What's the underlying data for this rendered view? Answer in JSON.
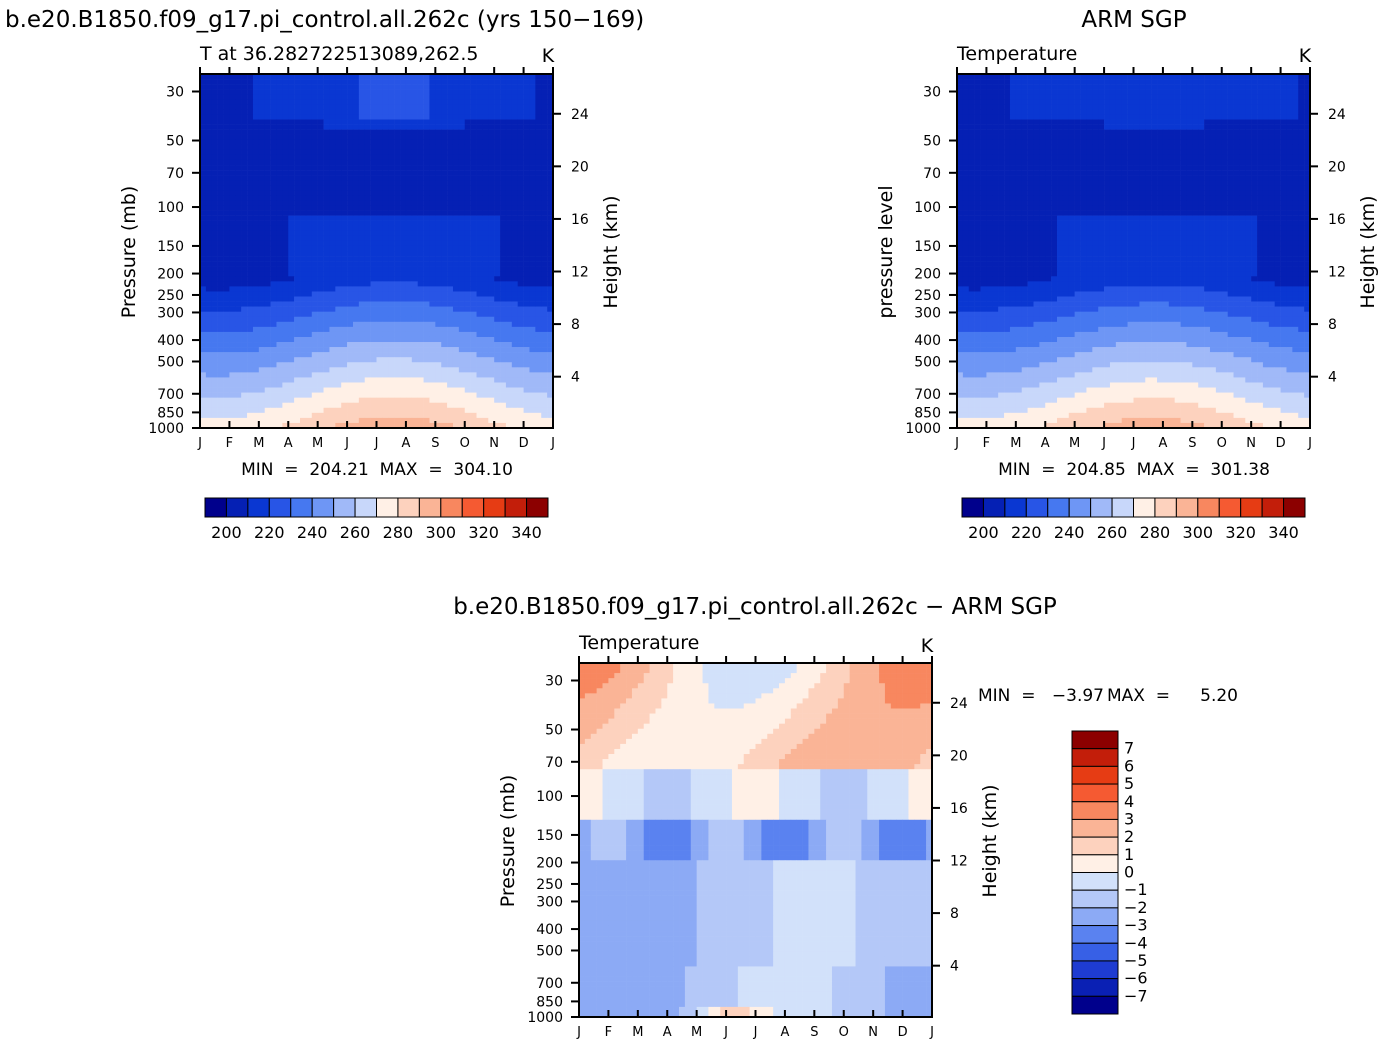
{
  "page": {
    "left_title": "b.e20.B1850.f09_g17.pi_control.all.262c (yrs 150−169)",
    "right_title": "ARM SGP",
    "diff_title": "b.e20.B1850.f09_g17.pi_control.all.262c − ARM SGP"
  },
  "chart_data": [
    {
      "type": "heatmap",
      "title": "b.e20.B1850.f09_g17.pi_control.all.262c (yrs 150−169)",
      "subtitle_left": "T at 36.282722513089,262.5",
      "subtitle_right": "K",
      "ylabel": "Pressure (mb)",
      "ylabel_right": "Height (km)",
      "months": [
        "J",
        "F",
        "M",
        "A",
        "M",
        "J",
        "J",
        "A",
        "S",
        "O",
        "N",
        "D",
        "J"
      ],
      "pressure_ticks": [
        "30",
        "50",
        "70",
        "100",
        "150",
        "200",
        "250",
        "300",
        "400",
        "500",
        "700",
        "850",
        "1000"
      ],
      "height_ticks": [
        "24",
        "20",
        "16",
        "12",
        "8",
        "4"
      ],
      "min_text": "MIN  =  204.21  MAX  =  304.10",
      "min": 204.21,
      "max": 304.1,
      "colorbar_labels": [
        "200",
        "220",
        "240",
        "260",
        "280",
        "300",
        "320",
        "340"
      ],
      "colorbar_levels": [
        190,
        200,
        210,
        220,
        230,
        240,
        250,
        260,
        270,
        280,
        290,
        300,
        310,
        320,
        330,
        340,
        350
      ],
      "colorbar_colors": [
        "#00008c",
        "#0520b4",
        "#0a37d2",
        "#2855e6",
        "#4678f0",
        "#6e96f5",
        "#a0b9f8",
        "#c8d7fa",
        "#fff0e6",
        "#fdd2be",
        "#fab496",
        "#f8875f",
        "#f55a32",
        "#e63c14",
        "#c31e0a",
        "#8c0000"
      ]
    },
    {
      "type": "heatmap",
      "title": "ARM SGP",
      "subtitle_left": "Temperature",
      "subtitle_right": "K",
      "ylabel": "pressure level",
      "ylabel_right": "Height (km)",
      "months": [
        "J",
        "F",
        "M",
        "A",
        "M",
        "J",
        "J",
        "A",
        "S",
        "O",
        "N",
        "D",
        "J"
      ],
      "pressure_ticks": [
        "30",
        "50",
        "70",
        "100",
        "150",
        "200",
        "250",
        "300",
        "400",
        "500",
        "700",
        "850",
        "1000"
      ],
      "height_ticks": [
        "24",
        "20",
        "16",
        "12",
        "8",
        "4"
      ],
      "min_text": "MIN  =  204.85  MAX  =  301.38",
      "min": 204.85,
      "max": 301.38,
      "colorbar_labels": [
        "200",
        "220",
        "240",
        "260",
        "280",
        "300",
        "320",
        "340"
      ]
    },
    {
      "type": "heatmap",
      "title": "b.e20.B1850.f09_g17.pi_control.all.262c − ARM SGP",
      "subtitle_left": "Temperature",
      "subtitle_right": "K",
      "ylabel": "Pressure (mb)",
      "ylabel_right": "Height (km)",
      "months": [
        "J",
        "F",
        "M",
        "A",
        "M",
        "J",
        "J",
        "A",
        "S",
        "O",
        "N",
        "D",
        "J"
      ],
      "pressure_ticks": [
        "30",
        "50",
        "70",
        "100",
        "150",
        "200",
        "250",
        "300",
        "400",
        "500",
        "700",
        "850",
        "1000"
      ],
      "height_ticks": [
        "24",
        "20",
        "16",
        "12",
        "8",
        "4"
      ],
      "min_label": "MIN  =",
      "min_value": "−3.97",
      "max_label": "MAX  =",
      "max_value": "5.20",
      "min": -3.97,
      "max": 5.2,
      "colorbar_labels": [
        "7",
        "6",
        "5",
        "4",
        "3",
        "2",
        "1",
        "0",
        "−1",
        "−2",
        "−3",
        "−4",
        "−5",
        "−6",
        "−7"
      ],
      "colorbar_colors": [
        "#8c0000",
        "#c31e0a",
        "#e63c14",
        "#f55a32",
        "#f8875f",
        "#fab496",
        "#fdd2be",
        "#fff0e6",
        "#d2e1fa",
        "#b4c8f8",
        "#8caaf5",
        "#5a82f0",
        "#3760e6",
        "#1e3cd2",
        "#0a20b4",
        "#00008c"
      ]
    }
  ]
}
